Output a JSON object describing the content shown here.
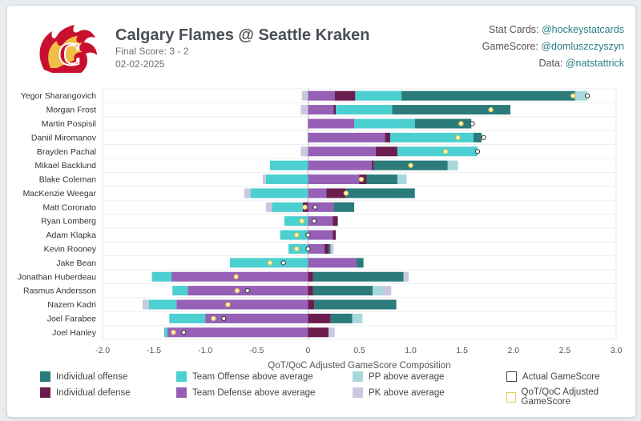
{
  "header": {
    "title": "Calgary Flames @ Seattle Kraken",
    "final_score": "Final Score: 3 - 2",
    "date": "02-02-2025"
  },
  "credits": [
    {
      "label": "Stat Cards: ",
      "handle": "@hockeystatcards"
    },
    {
      "label": "GameScore: ",
      "handle": "@domluszczyszyn"
    },
    {
      "label": "Data: ",
      "handle": "@natstattrick"
    }
  ],
  "logo": {
    "name": "calgary-flames-logo",
    "red": "#c8102e",
    "yellow": "#f1be48"
  },
  "colors": {
    "individual_offense": "#2b7b7b",
    "individual_defense": "#6b1d4e",
    "team_offense": "#4ccfd0",
    "team_defense": "#9660b6",
    "pp": "#a8d8dc",
    "pk": "#c8c9df",
    "adjusted_marker": "#e7c84a"
  },
  "legend": [
    {
      "key": "individual_offense",
      "label": "Individual offense",
      "style": "fill"
    },
    {
      "key": "team_offense",
      "label": "Team Offense above average",
      "style": "fill"
    },
    {
      "key": "pp",
      "label": "PP above average",
      "style": "fill"
    },
    {
      "key": "actual",
      "label": "Actual GameScore",
      "style": "outline-dark"
    },
    {
      "key": "individual_defense",
      "label": "Individual defense",
      "style": "fill"
    },
    {
      "key": "team_defense",
      "label": "Team Defense above average",
      "style": "fill"
    },
    {
      "key": "pk",
      "label": "PK above average",
      "style": "fill"
    },
    {
      "key": "adjusted",
      "label": "QoT/QoC Adjusted GameScore",
      "style": "outline-yellow"
    }
  ],
  "chart_data": {
    "type": "bar",
    "orientation": "horizontal-stacked-diverging",
    "xlabel": "QoT/QoC Adjusted GameScore Composition",
    "ylabel": "",
    "xlim": [
      -2.0,
      3.0
    ],
    "xticks": [
      "-2.0",
      "-1.5",
      "-1.0",
      "-0.5",
      "0",
      "0.5",
      "1.0",
      "1.5",
      "2.0",
      "2.5",
      "3.0"
    ],
    "xtick_values": [
      -2.0,
      -1.5,
      -1.0,
      -0.5,
      0,
      0.5,
      1.0,
      1.5,
      2.0,
      2.5,
      3.0
    ],
    "grid": true,
    "components": [
      "team_defense",
      "individual_defense",
      "team_offense",
      "individual_offense",
      "pp",
      "pk"
    ],
    "players": [
      {
        "name": "Yegor Sharangovich",
        "team_defense": 0.26,
        "individual_defense": 0.2,
        "team_offense": 0.45,
        "individual_offense": 1.69,
        "pp": 0.12,
        "pk": -0.06,
        "actual": 2.72,
        "adjusted": 2.58
      },
      {
        "name": "Morgan Frost",
        "team_defense": 0.25,
        "individual_defense": 0.02,
        "team_offense": 0.55,
        "individual_offense": 1.15,
        "pp": 0.0,
        "pk": -0.07,
        "actual": 1.78,
        "adjusted": 1.78
      },
      {
        "name": "Martin Pospisil",
        "team_defense": 0.45,
        "individual_defense": 0.0,
        "team_offense": 0.59,
        "individual_offense": 0.55,
        "pp": 0.0,
        "pk": 0.0,
        "actual": 1.6,
        "adjusted": 1.49
      },
      {
        "name": "Daniil Miromanov",
        "team_defense": 0.75,
        "individual_defense": 0.05,
        "team_offense": 0.81,
        "individual_offense": 0.08,
        "pp": 0.0,
        "pk": 0.0,
        "actual": 1.71,
        "adjusted": 1.46
      },
      {
        "name": "Brayden Pachal",
        "team_defense": 0.66,
        "individual_defense": 0.21,
        "team_offense": 0.78,
        "individual_offense": 0.0,
        "pp": 0.0,
        "pk": -0.07,
        "actual": 1.65,
        "adjusted": 1.34
      },
      {
        "name": "Mikael Backlund",
        "team_defense": 0.62,
        "individual_defense": 0.02,
        "team_offense": -0.37,
        "individual_offense": 0.72,
        "pp": 0.1,
        "pk": 0.0,
        "actual": 1.0,
        "adjusted": 1.0
      },
      {
        "name": "Blake Coleman",
        "team_defense": 0.5,
        "individual_defense": 0.07,
        "team_offense": -0.41,
        "individual_offense": 0.3,
        "pp": 0.09,
        "pk": -0.03,
        "actual": 0.52,
        "adjusted": 0.52
      },
      {
        "name": "MacKenzie Weegar",
        "team_defense": 0.18,
        "individual_defense": 0.19,
        "team_offense": -0.56,
        "individual_offense": 0.67,
        "pp": 0.0,
        "pk": -0.06,
        "actual": 0.37,
        "adjusted": 0.37
      },
      {
        "name": "Matt Coronato",
        "team_defense": 0.25,
        "individual_defense": -0.05,
        "team_offense": -0.3,
        "individual_offense": 0.2,
        "pp": 0.0,
        "pk": -0.06,
        "actual": 0.07,
        "adjusted": -0.03
      },
      {
        "name": "Ryan Lomberg",
        "team_defense": 0.24,
        "individual_defense": 0.05,
        "team_offense": -0.23,
        "individual_offense": 0.0,
        "pp": 0.0,
        "pk": 0.0,
        "actual": 0.06,
        "adjusted": -0.06
      },
      {
        "name": "Adam Klapka",
        "team_defense": 0.24,
        "individual_defense": 0.03,
        "team_offense": -0.27,
        "individual_offense": 0.0,
        "pp": 0.0,
        "pk": 0.0,
        "actual": 0.0,
        "adjusted": -0.11
      },
      {
        "name": "Kevin Rooney",
        "team_defense": 0.16,
        "individual_defense": 0.04,
        "team_offense": -0.19,
        "individual_offense": 0.02,
        "pp": 0.0,
        "pk": 0.03,
        "actual": 0.0,
        "adjusted": -0.11
      },
      {
        "name": "Jake Bean",
        "team_defense": 0.47,
        "individual_defense": 0.0,
        "team_offense": -0.76,
        "individual_offense": 0.07,
        "pp": 0.0,
        "pk": 0.0,
        "actual": -0.24,
        "adjusted": -0.37
      },
      {
        "name": "Jonathan Huberdeau",
        "team_defense": -1.33,
        "individual_defense": 0.05,
        "team_offense": -0.19,
        "individual_offense": 0.88,
        "pp": 0.0,
        "pk": 0.05,
        "actual": -0.7,
        "adjusted": -0.7
      },
      {
        "name": "Rasmus Andersson",
        "team_defense": -1.17,
        "individual_defense": 0.05,
        "team_offense": -0.15,
        "individual_offense": 0.58,
        "pp": 0.1,
        "pk": 0.08,
        "actual": -0.59,
        "adjusted": -0.69
      },
      {
        "name": "Nazem Kadri",
        "team_defense": -1.28,
        "individual_defense": 0.06,
        "team_offense": -0.27,
        "individual_offense": 0.8,
        "pp": 0.0,
        "pk": -0.06,
        "actual": -0.78,
        "adjusted": -0.78
      },
      {
        "name": "Joel Farabee",
        "team_defense": -1.0,
        "individual_defense": 0.22,
        "team_offense": -0.35,
        "individual_offense": 0.21,
        "pp": 0.1,
        "pk": 0.0,
        "actual": -0.82,
        "adjusted": -0.92
      },
      {
        "name": "Joel Hanley",
        "team_defense": -1.37,
        "individual_defense": 0.2,
        "team_offense": -0.03,
        "individual_offense": 0.0,
        "pp": 0.0,
        "pk": 0.06,
        "actual": -1.21,
        "adjusted": -1.31
      }
    ]
  }
}
